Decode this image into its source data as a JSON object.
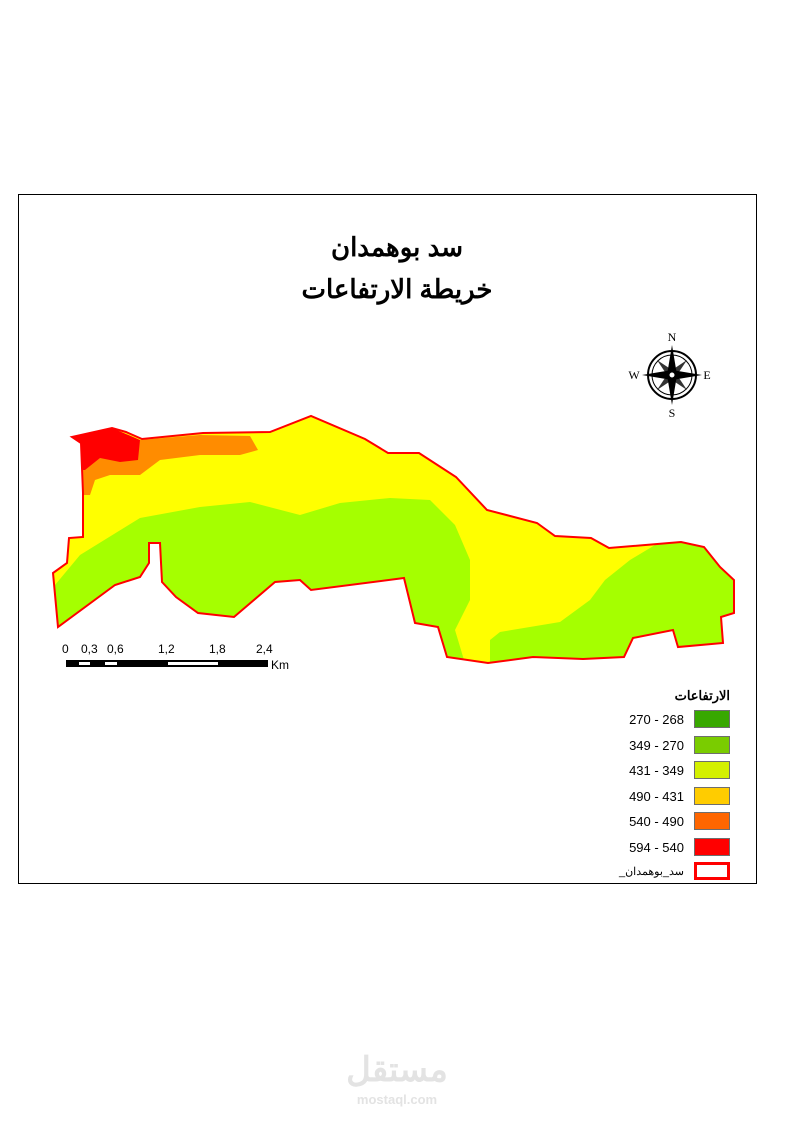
{
  "title": {
    "line1": "سد بوهمدان",
    "line2": "خريطة الارتفاعات"
  },
  "compass": {
    "icon": "compass-rose-icon",
    "n": "N",
    "s": "S",
    "e": "E",
    "w": "W"
  },
  "scale_bar": {
    "ticks": [
      "0",
      "0,3",
      "0,6",
      "1,2",
      "1,8",
      "2,4"
    ],
    "unit": "Km"
  },
  "legend": {
    "title": "الارتفاعات",
    "classes": [
      {
        "label": "270 - 268",
        "color": "#38a800"
      },
      {
        "label": "349 - 270",
        "color": "#7acc00"
      },
      {
        "label": "431 - 349",
        "color": "#d4f000"
      },
      {
        "label": "490 - 431",
        "color": "#ffcc00"
      },
      {
        "label": "540 - 490",
        "color": "#ff6600"
      },
      {
        "label": "594 - 540",
        "color": "#ff0000"
      }
    ],
    "boundary": {
      "label": "سد_بوهمدان_",
      "color": "#ff0000"
    }
  },
  "map_colors": {
    "yellow": "#ffff00",
    "green": "#a5ff00",
    "orange": "#ff8c00",
    "red": "#ff0000",
    "outline": "#ff0000"
  },
  "watermark": {
    "arabic": "مستقل",
    "latin": "mostaql.com"
  }
}
